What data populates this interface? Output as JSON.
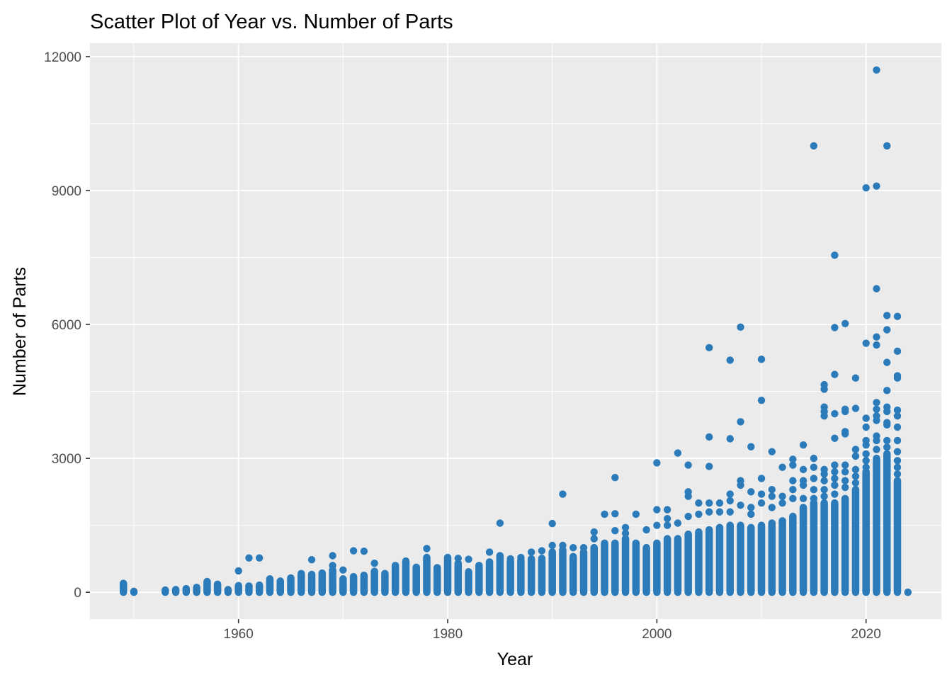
{
  "chart_data": {
    "type": "scatter",
    "title": "Scatter Plot of Year vs. Number of Parts",
    "xlabel": "Year",
    "ylabel": "Number of Parts",
    "xlim": [
      1945.8,
      2027.2
    ],
    "ylim": [
      -600,
      12300
    ],
    "x_ticks": [
      1960,
      1980,
      2000,
      2020
    ],
    "x_tick_labels": [
      "1960",
      "1980",
      "2000",
      "2020"
    ],
    "y_ticks": [
      0,
      3000,
      6000,
      9000,
      12000
    ],
    "y_tick_labels": [
      "0",
      "3000",
      "6000",
      "9000",
      "12000"
    ],
    "grid": true,
    "legend": "none",
    "colors": {
      "panel": "#EBEBEB",
      "grid": "#FFFFFF",
      "point": "#2B7BBA"
    },
    "column_max": [
      [
        1949,
        200
      ],
      [
        1950,
        20
      ],
      [
        1953,
        50
      ],
      [
        1954,
        60
      ],
      [
        1955,
        80
      ],
      [
        1956,
        110
      ],
      [
        1957,
        240
      ],
      [
        1958,
        180
      ],
      [
        1959,
        60
      ],
      [
        1960,
        150
      ],
      [
        1961,
        140
      ],
      [
        1962,
        160
      ],
      [
        1963,
        300
      ],
      [
        1964,
        250
      ],
      [
        1965,
        320
      ],
      [
        1966,
        420
      ],
      [
        1967,
        400
      ],
      [
        1968,
        430
      ],
      [
        1969,
        500
      ],
      [
        1970,
        300
      ],
      [
        1971,
        350
      ],
      [
        1972,
        380
      ],
      [
        1973,
        470
      ],
      [
        1974,
        420
      ],
      [
        1975,
        600
      ],
      [
        1976,
        680
      ],
      [
        1977,
        560
      ],
      [
        1978,
        780
      ],
      [
        1979,
        550
      ],
      [
        1980,
        780
      ],
      [
        1981,
        650
      ],
      [
        1982,
        460
      ],
      [
        1983,
        600
      ],
      [
        1984,
        680
      ],
      [
        1985,
        820
      ],
      [
        1986,
        700
      ],
      [
        1987,
        720
      ],
      [
        1988,
        750
      ],
      [
        1989,
        760
      ],
      [
        1990,
        900
      ],
      [
        1991,
        950
      ],
      [
        1992,
        800
      ],
      [
        1993,
        900
      ],
      [
        1994,
        1000
      ],
      [
        1995,
        1100
      ],
      [
        1996,
        1100
      ],
      [
        1997,
        1200
      ],
      [
        1998,
        1100
      ],
      [
        1999,
        1000
      ],
      [
        2000,
        1100
      ],
      [
        2001,
        1200
      ],
      [
        2002,
        1200
      ],
      [
        2003,
        1300
      ],
      [
        2004,
        1350
      ],
      [
        2005,
        1400
      ],
      [
        2006,
        1450
      ],
      [
        2007,
        1500
      ],
      [
        2008,
        1500
      ],
      [
        2009,
        1450
      ],
      [
        2010,
        1500
      ],
      [
        2011,
        1550
      ],
      [
        2012,
        1600
      ],
      [
        2013,
        1700
      ],
      [
        2014,
        1900
      ],
      [
        2015,
        2000
      ],
      [
        2016,
        2000
      ],
      [
        2017,
        2000
      ],
      [
        2018,
        2100
      ],
      [
        2019,
        2300
      ],
      [
        2020,
        2700
      ],
      [
        2021,
        3000
      ],
      [
        2022,
        3100
      ],
      [
        2023,
        2500
      ],
      [
        2024,
        0
      ]
    ],
    "points": [
      [
        1949,
        30
      ],
      [
        1949,
        80
      ],
      [
        1949,
        180
      ],
      [
        1950,
        10
      ],
      [
        1960,
        480
      ],
      [
        1961,
        770
      ],
      [
        1962,
        770
      ],
      [
        1967,
        730
      ],
      [
        1969,
        820
      ],
      [
        1969,
        600
      ],
      [
        1970,
        500
      ],
      [
        1971,
        930
      ],
      [
        1972,
        920
      ],
      [
        1973,
        650
      ],
      [
        1976,
        700
      ],
      [
        1978,
        980
      ],
      [
        1981,
        760
      ],
      [
        1982,
        740
      ],
      [
        1984,
        900
      ],
      [
        1985,
        1550
      ],
      [
        1986,
        750
      ],
      [
        1987,
        780
      ],
      [
        1988,
        900
      ],
      [
        1989,
        930
      ],
      [
        1990,
        1540
      ],
      [
        1990,
        1050
      ],
      [
        1991,
        2200
      ],
      [
        1991,
        1050
      ],
      [
        1992,
        1000
      ],
      [
        1993,
        1000
      ],
      [
        1994,
        1350
      ],
      [
        1994,
        1200
      ],
      [
        1995,
        1750
      ],
      [
        1996,
        2570
      ],
      [
        1996,
        1760
      ],
      [
        1996,
        1380
      ],
      [
        1997,
        1450
      ],
      [
        1997,
        1320
      ],
      [
        1998,
        1750
      ],
      [
        1999,
        1400
      ],
      [
        2000,
        2900
      ],
      [
        2000,
        1850
      ],
      [
        2000,
        1500
      ],
      [
        2001,
        1850
      ],
      [
        2001,
        1650
      ],
      [
        2001,
        1500
      ],
      [
        2002,
        3120
      ],
      [
        2002,
        1550
      ],
      [
        2003,
        2850
      ],
      [
        2003,
        2250
      ],
      [
        2003,
        2150
      ],
      [
        2003,
        1700
      ],
      [
        2004,
        2000
      ],
      [
        2004,
        1750
      ],
      [
        2005,
        5480
      ],
      [
        2005,
        3480
      ],
      [
        2005,
        2820
      ],
      [
        2005,
        2000
      ],
      [
        2005,
        1800
      ],
      [
        2006,
        2000
      ],
      [
        2006,
        1800
      ],
      [
        2007,
        5200
      ],
      [
        2007,
        3440
      ],
      [
        2007,
        2200
      ],
      [
        2007,
        2050
      ],
      [
        2007,
        1800
      ],
      [
        2008,
        5940
      ],
      [
        2008,
        3820
      ],
      [
        2008,
        2500
      ],
      [
        2008,
        2400
      ],
      [
        2008,
        1950
      ],
      [
        2009,
        3260
      ],
      [
        2009,
        2250
      ],
      [
        2009,
        1900
      ],
      [
        2009,
        1750
      ],
      [
        2010,
        5220
      ],
      [
        2010,
        4300
      ],
      [
        2010,
        2550
      ],
      [
        2010,
        2200
      ],
      [
        2010,
        2000
      ],
      [
        2011,
        3150
      ],
      [
        2011,
        2300
      ],
      [
        2011,
        2150
      ],
      [
        2011,
        1900
      ],
      [
        2012,
        2800
      ],
      [
        2012,
        2150
      ],
      [
        2012,
        2000
      ],
      [
        2013,
        2980
      ],
      [
        2013,
        2850
      ],
      [
        2013,
        2500
      ],
      [
        2013,
        2300
      ],
      [
        2013,
        2100
      ],
      [
        2014,
        3300
      ],
      [
        2014,
        2750
      ],
      [
        2014,
        2500
      ],
      [
        2014,
        2400
      ],
      [
        2014,
        2100
      ],
      [
        2015,
        10000
      ],
      [
        2015,
        3000
      ],
      [
        2015,
        2800
      ],
      [
        2015,
        2550
      ],
      [
        2015,
        2300
      ],
      [
        2015,
        2100
      ],
      [
        2016,
        4650
      ],
      [
        2016,
        4550
      ],
      [
        2016,
        4150
      ],
      [
        2016,
        4050
      ],
      [
        2016,
        3950
      ],
      [
        2016,
        2750
      ],
      [
        2016,
        2650
      ],
      [
        2016,
        2500
      ],
      [
        2016,
        2300
      ],
      [
        2016,
        2150
      ],
      [
        2017,
        7550
      ],
      [
        2017,
        5930
      ],
      [
        2017,
        4880
      ],
      [
        2017,
        4000
      ],
      [
        2017,
        3450
      ],
      [
        2017,
        2850
      ],
      [
        2017,
        2700
      ],
      [
        2017,
        2550
      ],
      [
        2017,
        2400
      ],
      [
        2017,
        2200
      ],
      [
        2018,
        6020
      ],
      [
        2018,
        4100
      ],
      [
        2018,
        4050
      ],
      [
        2018,
        3600
      ],
      [
        2018,
        3550
      ],
      [
        2018,
        2850
      ],
      [
        2018,
        2700
      ],
      [
        2018,
        2500
      ],
      [
        2018,
        2350
      ],
      [
        2019,
        4800
      ],
      [
        2019,
        4120
      ],
      [
        2019,
        3200
      ],
      [
        2019,
        3050
      ],
      [
        2019,
        2750
      ],
      [
        2019,
        2600
      ],
      [
        2019,
        2450
      ],
      [
        2020,
        9060
      ],
      [
        2020,
        5580
      ],
      [
        2020,
        3900
      ],
      [
        2020,
        3700
      ],
      [
        2020,
        3400
      ],
      [
        2020,
        3300
      ],
      [
        2020,
        3100
      ],
      [
        2020,
        2950
      ],
      [
        2020,
        2800
      ],
      [
        2021,
        11700
      ],
      [
        2021,
        9100
      ],
      [
        2021,
        6800
      ],
      [
        2021,
        5720
      ],
      [
        2021,
        5540
      ],
      [
        2021,
        4250
      ],
      [
        2021,
        4100
      ],
      [
        2021,
        3950
      ],
      [
        2021,
        3850
      ],
      [
        2021,
        3500
      ],
      [
        2021,
        3400
      ],
      [
        2021,
        3200
      ],
      [
        2022,
        10000
      ],
      [
        2022,
        6200
      ],
      [
        2022,
        5880
      ],
      [
        2022,
        5150
      ],
      [
        2022,
        4520
      ],
      [
        2022,
        4150
      ],
      [
        2022,
        4050
      ],
      [
        2022,
        3800
      ],
      [
        2022,
        3750
      ],
      [
        2022,
        3400
      ],
      [
        2022,
        3250
      ],
      [
        2023,
        6180
      ],
      [
        2023,
        5400
      ],
      [
        2023,
        4850
      ],
      [
        2023,
        4800
      ],
      [
        2023,
        4080
      ],
      [
        2023,
        3950
      ],
      [
        2023,
        3700
      ],
      [
        2023,
        3400
      ],
      [
        2023,
        3150
      ],
      [
        2023,
        2950
      ],
      [
        2023,
        2800
      ],
      [
        2023,
        2650
      ],
      [
        2024,
        0
      ]
    ]
  }
}
